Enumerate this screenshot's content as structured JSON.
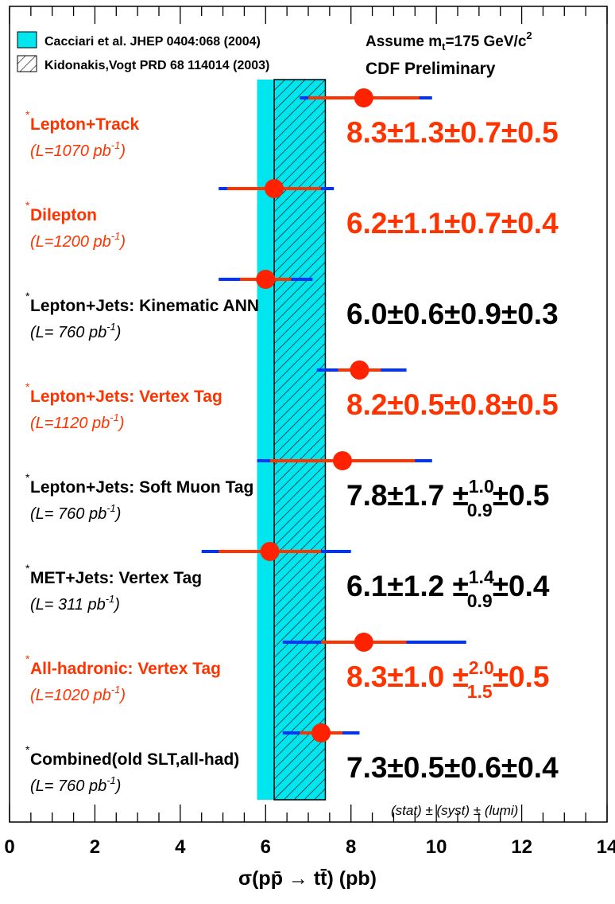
{
  "chart_data": {
    "type": "scatter",
    "xlabel": "σ(pp̄ → tt̄) (pb)",
    "xlim": [
      0,
      14
    ],
    "x_ticks": [
      0,
      2,
      4,
      6,
      8,
      10,
      12,
      14
    ],
    "x_tick_labels": [
      "0",
      "2",
      "4",
      "6",
      "8",
      "10",
      "12",
      "14"
    ],
    "grid": false,
    "theory_band": {
      "label": "Cacciari et al. JHEP 0404:068 (2004)",
      "xmin": 5.8,
      "xmax": 7.4,
      "color": "#00e5ee"
    },
    "hatched_band": {
      "label": "Kidonakis,Vogt PRD 68 114014 (2003)",
      "xmin": 6.2,
      "xmax": 7.4
    },
    "annotation_mass_prefix": "Assume m",
    "annotation_mass_sub": "t",
    "annotation_mass_suffix": "=175 GeV/c",
    "annotation_mass_sup": "2",
    "annotation_prelim": "CDF Preliminary",
    "footnote": "(stat) ± (syst) ± (lumi)",
    "colors": {
      "red": "#ff3300",
      "black": "#000000",
      "blue": "#0033ff",
      "marker": "#ff2200"
    },
    "measurements": [
      {
        "name": "Lepton+Track",
        "lumi": "(L=1070 pb",
        "lumi_sup": "-1",
        "lumi_close": ")",
        "color": "red",
        "value": 8.3,
        "stat_lo": 7.0,
        "stat_hi": 9.6,
        "tot_lo": 6.8,
        "tot_hi": 9.9,
        "result": "8.3±1.3±0.7±0.5",
        "asym": false
      },
      {
        "name": "Dilepton",
        "lumi": "(L=1200 pb",
        "lumi_sup": "-1",
        "lumi_close": ")",
        "color": "red",
        "value": 6.2,
        "stat_lo": 5.1,
        "stat_hi": 7.3,
        "tot_lo": 4.9,
        "tot_hi": 7.6,
        "result": "6.2±1.1±0.7±0.4",
        "asym": false
      },
      {
        "name": "Lepton+Jets: Kinematic ANN",
        "lumi": "(L= 760 pb",
        "lumi_sup": "-1",
        "lumi_close": ")",
        "color": "black",
        "value": 6.0,
        "stat_lo": 5.4,
        "stat_hi": 6.6,
        "tot_lo": 4.9,
        "tot_hi": 7.1,
        "result": "6.0±0.6±0.9±0.3",
        "asym": false
      },
      {
        "name": "Lepton+Jets: Vertex Tag",
        "lumi": "(L=1120 pb",
        "lumi_sup": "-1",
        "lumi_close": ")",
        "color": "red",
        "value": 8.2,
        "stat_lo": 7.7,
        "stat_hi": 8.7,
        "tot_lo": 7.2,
        "tot_hi": 9.3,
        "result": "8.2±0.5±0.8±0.5",
        "asym": false
      },
      {
        "name": "Lepton+Jets: Soft Muon Tag",
        "lumi": "(L= 760 pb",
        "lumi_sup": "-1",
        "lumi_close": ")",
        "color": "black",
        "value": 7.8,
        "stat_lo": 6.1,
        "stat_hi": 9.5,
        "tot_lo": 5.8,
        "tot_hi": 9.9,
        "result_main": "7.8±1.7 ±",
        "result_sup": "1.0",
        "result_sub": "0.9",
        "result_end": "±0.5",
        "asym": true
      },
      {
        "name": "MET+Jets: Vertex Tag",
        "lumi": "(L= 311 pb",
        "lumi_sup": "-1",
        "lumi_close": ")",
        "color": "black",
        "value": 6.1,
        "stat_lo": 4.9,
        "stat_hi": 7.3,
        "tot_lo": 4.5,
        "tot_hi": 8.0,
        "result_main": "6.1±1.2 ±",
        "result_sup": "1.4",
        "result_sub": "0.9",
        "result_end": "±0.4",
        "asym": true
      },
      {
        "name": "All-hadronic: Vertex Tag",
        "lumi": "(L=1020 pb",
        "lumi_sup": "-1",
        "lumi_close": ")",
        "color": "red",
        "value": 8.3,
        "stat_lo": 7.3,
        "stat_hi": 9.3,
        "tot_lo": 6.4,
        "tot_hi": 10.7,
        "result_main": "8.3±1.0 ±",
        "result_sup": "2.0",
        "result_sub": "1.5",
        "result_end": "±0.5",
        "asym": true
      },
      {
        "name": "Combined(old SLT,all-had)",
        "lumi": "(L= 760 pb",
        "lumi_sup": "-1",
        "lumi_close": ")",
        "color": "black",
        "value": 7.3,
        "stat_lo": 6.8,
        "stat_hi": 7.8,
        "tot_lo": 6.4,
        "tot_hi": 8.2,
        "result": "7.3±0.5±0.6±0.4",
        "asym": false
      }
    ]
  }
}
